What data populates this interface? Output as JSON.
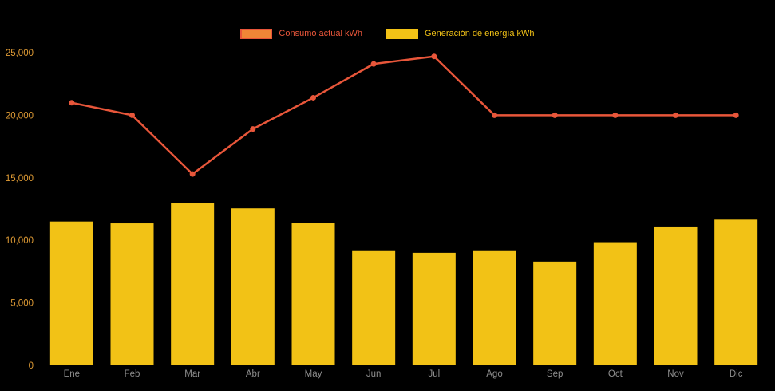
{
  "legend": {
    "items": [
      {
        "label": "Consumo actual kWh",
        "swatch_fill": "#f08636",
        "swatch_border": "#e8563a",
        "text_color": "#e8563a"
      },
      {
        "label": "Generación de energía kWh",
        "swatch_fill": "#f2c216",
        "swatch_border": "#f2c216",
        "text_color": "#f2c216"
      }
    ]
  },
  "axes": {
    "y_tick_color": "#df9b35",
    "x_tick_color": "#8e8e8e"
  },
  "chart_data": {
    "type": "combo",
    "title": "",
    "xlabel": "",
    "ylabel": "",
    "categories": [
      "Ene",
      "Feb",
      "Mar",
      "Abr",
      "May",
      "Jun",
      "Jul",
      "Ago",
      "Sep",
      "Oct",
      "Nov",
      "Dic"
    ],
    "series": [
      {
        "name": "Consumo actual kWh",
        "type": "line",
        "color": "#e8563a",
        "values": [
          21000,
          20000,
          15300,
          18900,
          21400,
          24100,
          24700,
          20000,
          20000,
          20000,
          20000,
          20000
        ]
      },
      {
        "name": "Generación de energía kWh",
        "type": "bar",
        "color": "#f2c216",
        "values": [
          11500,
          11350,
          13000,
          12550,
          11400,
          9200,
          9000,
          9200,
          8300,
          9850,
          11100,
          11650
        ]
      }
    ],
    "ylim": [
      0,
      25000
    ],
    "ytick_step": 5000,
    "ytick_labels": [
      "0",
      "5,000",
      "10,000",
      "15,000",
      "20,000",
      "25,000"
    ],
    "grid": false,
    "legend_position": "top",
    "background": "#000000"
  }
}
